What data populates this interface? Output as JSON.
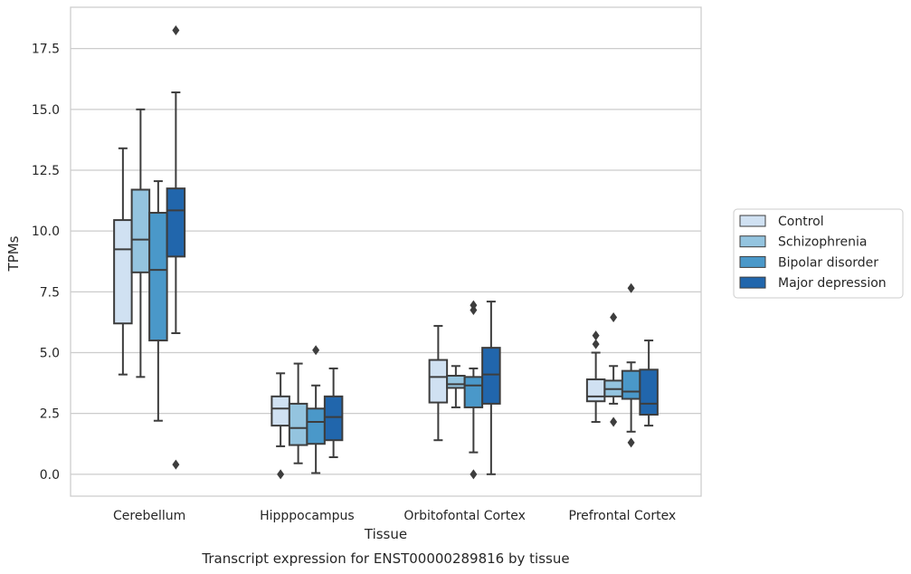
{
  "chart_data": {
    "type": "boxplot",
    "title": "Transcript expression for ENST00000289816 by tissue",
    "xlabel": "Tissue",
    "ylabel": "TPMs",
    "ylim": [
      -0.9,
      19.2
    ],
    "yticks": [
      "0.0",
      "2.5",
      "5.0",
      "7.5",
      "10.0",
      "12.5",
      "15.0",
      "17.5"
    ],
    "ytick_values": [
      0,
      2.5,
      5,
      7.5,
      10,
      12.5,
      15,
      17.5
    ],
    "grid": "horizontal",
    "legend_placement": "right",
    "categories": [
      "Cerebellum",
      "Hipppocampus",
      "Orbitofontal Cortex",
      "Prefrontal Cortex"
    ],
    "series": [
      {
        "name": "Control",
        "color": "#d0e1f2",
        "boxes": [
          {
            "whislo": 4.1,
            "q1": 6.2,
            "med": 9.25,
            "q3": 10.45,
            "whishi": 13.4,
            "fliers": []
          },
          {
            "whislo": 1.15,
            "q1": 2.0,
            "med": 2.7,
            "q3": 3.2,
            "whishi": 4.15,
            "fliers": [
              0.0
            ]
          },
          {
            "whislo": 1.4,
            "q1": 2.95,
            "med": 4.0,
            "q3": 4.7,
            "whishi": 6.1,
            "fliers": []
          },
          {
            "whislo": 2.15,
            "q1": 3.0,
            "med": 3.2,
            "q3": 3.9,
            "whishi": 5.0,
            "fliers": [
              5.35,
              5.7
            ]
          }
        ]
      },
      {
        "name": "Schizophrenia",
        "color": "#94c4df",
        "boxes": [
          {
            "whislo": 4.0,
            "q1": 8.3,
            "med": 9.65,
            "q3": 11.7,
            "whishi": 15.0,
            "fliers": []
          },
          {
            "whislo": 0.45,
            "q1": 1.2,
            "med": 1.9,
            "q3": 2.9,
            "whishi": 4.55,
            "fliers": []
          },
          {
            "whislo": 2.75,
            "q1": 3.55,
            "med": 3.7,
            "q3": 4.05,
            "whishi": 4.45,
            "fliers": []
          },
          {
            "whislo": 2.9,
            "q1": 3.2,
            "med": 3.5,
            "q3": 3.85,
            "whishi": 4.45,
            "fliers": [
              2.15,
              6.45
            ]
          }
        ]
      },
      {
        "name": "Bipolar disorder",
        "color": "#4a98c9",
        "boxes": [
          {
            "whislo": 2.2,
            "q1": 5.5,
            "med": 8.4,
            "q3": 10.75,
            "whishi": 12.05,
            "fliers": []
          },
          {
            "whislo": 0.05,
            "q1": 1.25,
            "med": 2.15,
            "q3": 2.7,
            "whishi": 3.65,
            "fliers": [
              5.1
            ]
          },
          {
            "whislo": 0.9,
            "q1": 2.75,
            "med": 3.65,
            "q3": 4.0,
            "whishi": 4.35,
            "fliers": [
              0.0,
              6.75,
              6.95
            ]
          },
          {
            "whislo": 1.75,
            "q1": 3.1,
            "med": 3.4,
            "q3": 4.25,
            "whishi": 4.6,
            "fliers": [
              1.3,
              7.65
            ]
          }
        ]
      },
      {
        "name": "Major depression",
        "color": "#2166ac",
        "boxes": [
          {
            "whislo": 5.8,
            "q1": 8.95,
            "med": 10.85,
            "q3": 11.75,
            "whishi": 15.7,
            "fliers": [
              0.4,
              18.25
            ]
          },
          {
            "whislo": 0.7,
            "q1": 1.4,
            "med": 2.35,
            "q3": 3.2,
            "whishi": 4.35,
            "fliers": []
          },
          {
            "whislo": 0.0,
            "q1": 2.9,
            "med": 4.1,
            "q3": 5.2,
            "whishi": 7.1,
            "fliers": []
          },
          {
            "whislo": 2.0,
            "q1": 2.45,
            "med": 2.9,
            "q3": 4.3,
            "whishi": 5.5,
            "fliers": []
          }
        ]
      }
    ]
  }
}
